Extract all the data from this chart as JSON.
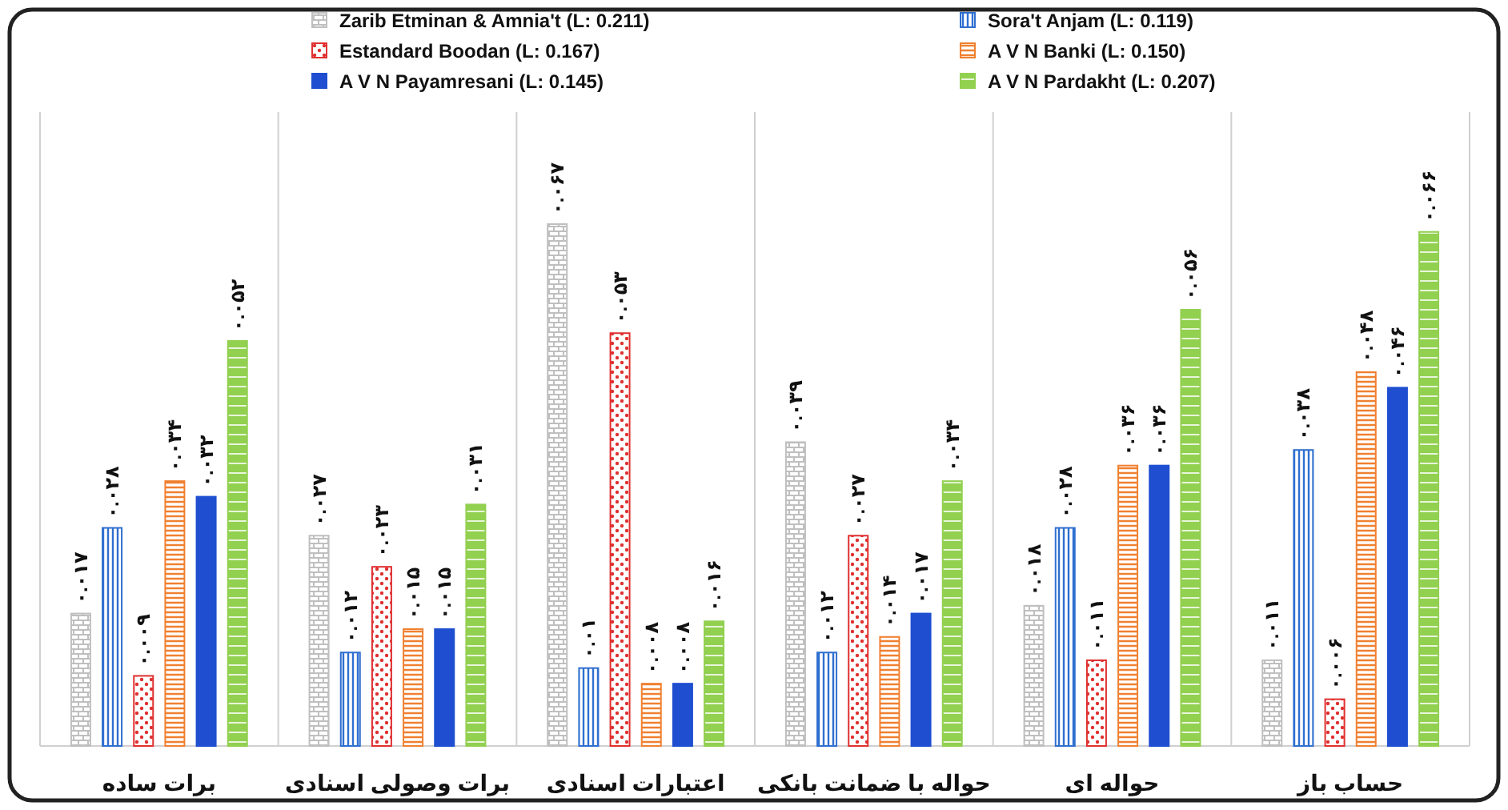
{
  "chart_data": {
    "type": "bar",
    "categories": [
      "برات ساده",
      "برات وصولی اسنادی",
      "اعتبارات اسنادی",
      "حواله با ضمانت بانکی",
      "حواله ای",
      "حساب باز"
    ],
    "series": [
      {
        "name": "Zarib Etminan & Amnia't (L: 0.211)",
        "color": "#bfbfbf",
        "values": [
          0.017,
          0.027,
          0.067,
          0.039,
          0.018,
          0.011
        ],
        "value_labels": [
          "۰.۰۱۷",
          "۰.۰۲۷",
          "۰.۰۶۷",
          "۰.۰۳۹",
          "۰.۰۱۸",
          "۰.۰۱۱"
        ]
      },
      {
        "name": "Sora't Anjam (L: 0.119)",
        "color": "#2f6fd0",
        "values": [
          0.028,
          0.012,
          0.01,
          0.012,
          0.028,
          0.038
        ],
        "value_labels": [
          "۰.۰۲۸",
          "۰.۰۱۲",
          "۰.۰۱",
          "۰.۰۱۲",
          "۰.۰۲۸",
          "۰.۰۳۸"
        ]
      },
      {
        "name": "Estandard Boodan (L: 0.167)",
        "color": "#e03030",
        "values": [
          0.009,
          0.023,
          0.053,
          0.027,
          0.011,
          0.006
        ],
        "value_labels": [
          "۰.۰۰۹",
          "۰.۰۲۳",
          "۰.۰۵۳",
          "۰.۰۲۷",
          "۰.۰۱۱",
          "۰.۰۰۶"
        ]
      },
      {
        "name": "A V N Banki (L: 0.150)",
        "color": "#f08030",
        "values": [
          0.034,
          0.015,
          0.008,
          0.014,
          0.036,
          0.048
        ],
        "value_labels": [
          "۰.۰۳۴",
          "۰.۰۱۵",
          "۰.۰۰۸",
          "۰.۰۱۴",
          "۰.۰۳۶",
          "۰.۰۴۸"
        ]
      },
      {
        "name": "A V N Payamresani (L: 0.145)",
        "color": "#1f4fd0",
        "values": [
          0.032,
          0.015,
          0.008,
          0.017,
          0.036,
          0.046
        ],
        "value_labels": [
          "۰.۰۳۲",
          "۰.۰۱۵",
          "۰.۰۰۸",
          "۰.۰۱۷",
          "۰.۰۳۶",
          "۰.۰۴۶"
        ]
      },
      {
        "name": "A V N Pardakht (L: 0.207)",
        "color": "#92d050",
        "values": [
          0.052,
          0.031,
          0.016,
          0.034,
          0.056,
          0.066
        ],
        "value_labels": [
          "۰.۰۵۲",
          "۰.۰۳۱",
          "۰.۰۱۶",
          "۰.۰۳۴",
          "۰.۰۵۶",
          "۰.۰۶۶"
        ]
      }
    ],
    "legend": "top"
  }
}
